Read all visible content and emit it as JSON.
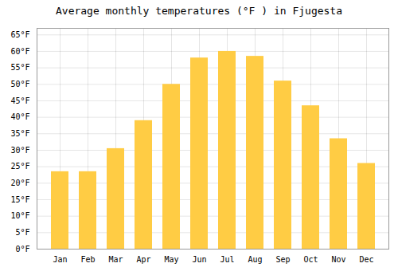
{
  "chart_data": {
    "type": "bar",
    "title": "Average monthly temperatures (°F ) in Fjugesta",
    "categories": [
      "Jan",
      "Feb",
      "Mar",
      "Apr",
      "May",
      "Jun",
      "Jul",
      "Aug",
      "Sep",
      "Oct",
      "Nov",
      "Dec"
    ],
    "values": [
      23.5,
      23.5,
      30.5,
      39.0,
      50.0,
      58.0,
      60.0,
      58.5,
      51.0,
      43.5,
      33.5,
      26.0
    ],
    "color": "#FFCC44",
    "ylim": [
      0,
      67
    ],
    "yticks": [
      {
        "value": 0,
        "label": "0°F"
      },
      {
        "value": 5,
        "label": "5°F"
      },
      {
        "value": 10,
        "label": "10°F"
      },
      {
        "value": 15,
        "label": "15°F"
      },
      {
        "value": 20,
        "label": "20°F"
      },
      {
        "value": 25,
        "label": "25°F"
      },
      {
        "value": 30,
        "label": "30°F"
      },
      {
        "value": 35,
        "label": "35°F"
      },
      {
        "value": 40,
        "label": "40°F"
      },
      {
        "value": 45,
        "label": "45°F"
      },
      {
        "value": 50,
        "label": "50°F"
      },
      {
        "value": 55,
        "label": "55°F"
      },
      {
        "value": 60,
        "label": "60°F"
      },
      {
        "value": 65,
        "label": "65°F"
      }
    ],
    "grid": true
  }
}
